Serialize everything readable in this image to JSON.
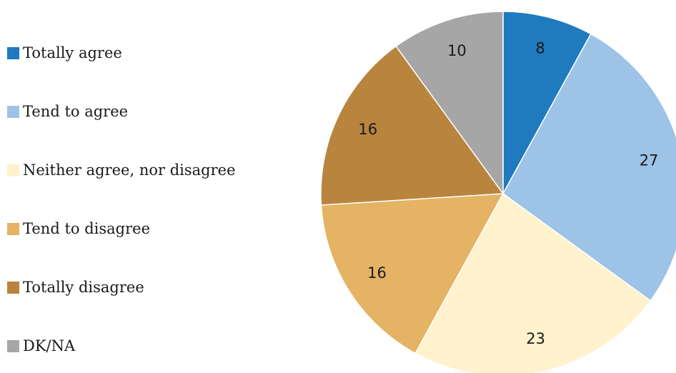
{
  "chart_data": {
    "type": "pie",
    "categories": [
      "Totally agree",
      "Tend to agree",
      "Neither agree, nor disagree",
      "Tend to disagree",
      "Totally disagree",
      "DK/NA"
    ],
    "values": [
      8,
      27,
      23,
      16,
      16,
      10
    ],
    "colors": [
      "#1f7bbd",
      "#9dc3e6",
      "#fff2cc",
      "#e4b363",
      "#b8843e",
      "#a6a6a6"
    ],
    "start": "12 o'clock",
    "direction": "clockwise",
    "legend_position": "left"
  }
}
